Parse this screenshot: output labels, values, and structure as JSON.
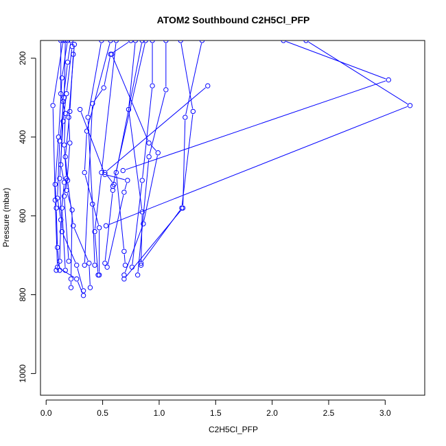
{
  "chart_data": {
    "type": "scatter",
    "title": "ATOM2 Southbound C2H5Cl_PFP",
    "xlabel": "C2H5Cl_PFP",
    "ylabel": "Pressure (mbar)",
    "xlim": [
      -0.05,
      3.35
    ],
    "ylim": [
      1055,
      155
    ],
    "y_reversed": true,
    "x_ticks": [
      "0.0",
      "0.5",
      "1.0",
      "1.5",
      "2.0",
      "2.5",
      "3.0"
    ],
    "x_tick_values": [
      0,
      0.5,
      1.0,
      1.5,
      2.0,
      2.5,
      3.0
    ],
    "y_ticks": [
      "200",
      "400",
      "600",
      "800",
      "1000"
    ],
    "y_tick_values": [
      200,
      400,
      600,
      800,
      1000
    ],
    "series_color": "#0000ff",
    "series": [
      {
        "points": [
          [
            0.19,
            155
          ],
          [
            0.14,
            250
          ],
          [
            0.11,
            400
          ],
          [
            0.08,
            520
          ],
          [
            0.09,
            580
          ],
          [
            0.1,
            680
          ],
          [
            0.12,
            738
          ]
        ]
      },
      {
        "points": [
          [
            0.17,
            155
          ],
          [
            0.16,
            300
          ],
          [
            0.12,
            410
          ],
          [
            0.1,
            555
          ],
          [
            0.13,
            610
          ],
          [
            0.12,
            715
          ],
          [
            0.09,
            738
          ]
        ]
      },
      {
        "points": [
          [
            0.22,
            155
          ],
          [
            0.19,
            210
          ],
          [
            0.15,
            310
          ],
          [
            0.13,
            470
          ],
          [
            0.16,
            515
          ],
          [
            0.14,
            580
          ],
          [
            0.17,
            738
          ]
        ]
      },
      {
        "points": [
          [
            0.13,
            155
          ],
          [
            0.13,
            290
          ],
          [
            0.17,
            340
          ],
          [
            0.16,
            420
          ],
          [
            0.18,
            505
          ],
          [
            0.16,
            550
          ],
          [
            0.2,
            715
          ]
        ]
      },
      {
        "points": [
          [
            0.25,
            165
          ],
          [
            0.2,
            350
          ],
          [
            0.21,
            415
          ],
          [
            0.18,
            535
          ],
          [
            0.23,
            585
          ],
          [
            0.22,
            760
          ],
          [
            0.22,
            782
          ]
        ]
      },
      {
        "points": [
          [
            0.23,
            170
          ],
          [
            0.18,
            290
          ],
          [
            0.15,
            360
          ],
          [
            0.12,
            505
          ],
          [
            0.14,
            640
          ],
          [
            0.27,
            725
          ],
          [
            0.33,
            790
          ]
        ]
      },
      {
        "points": [
          [
            0.24,
            190
          ],
          [
            0.21,
            335
          ],
          [
            0.17,
            450
          ],
          [
            0.19,
            510
          ],
          [
            0.24,
            625
          ],
          [
            0.38,
            720
          ],
          [
            0.39,
            782
          ]
        ]
      },
      {
        "points": [
          [
            0.15,
            155
          ],
          [
            0.06,
            320
          ],
          [
            0.08,
            560
          ],
          [
            0.1,
            730
          ],
          [
            0.27,
            760
          ],
          [
            0.33,
            802
          ]
        ]
      },
      {
        "points": [
          [
            0.57,
            155
          ],
          [
            0.36,
            385
          ],
          [
            0.34,
            490
          ],
          [
            0.47,
            630
          ],
          [
            0.47,
            750
          ]
        ]
      },
      {
        "points": [
          [
            0.75,
            155
          ],
          [
            0.57,
            190
          ],
          [
            0.51,
            275
          ],
          [
            0.41,
            315
          ],
          [
            0.34,
            725
          ]
        ]
      },
      {
        "points": [
          [
            0.62,
            155
          ],
          [
            0.49,
            490
          ],
          [
            0.43,
            640
          ],
          [
            0.46,
            750
          ]
        ]
      },
      {
        "points": [
          [
            0.49,
            155
          ],
          [
            0.37,
            350
          ],
          [
            0.41,
            570
          ],
          [
            0.43,
            725
          ]
        ]
      },
      {
        "points": [
          [
            0.79,
            155
          ],
          [
            0.73,
            330
          ],
          [
            0.85,
            590
          ],
          [
            0.84,
            725
          ]
        ]
      },
      {
        "points": [
          [
            0.85,
            155
          ],
          [
            0.62,
            490
          ],
          [
            0.69,
            690
          ],
          [
            0.7,
            725
          ]
        ]
      },
      {
        "points": [
          [
            0.94,
            155
          ],
          [
            0.94,
            270
          ],
          [
            0.85,
            510
          ],
          [
            0.76,
            730
          ]
        ]
      },
      {
        "points": [
          [
            1.06,
            155
          ],
          [
            1.06,
            280
          ],
          [
            0.91,
            450
          ],
          [
            0.81,
            750
          ]
        ]
      },
      {
        "points": [
          [
            1.19,
            155
          ],
          [
            1.3,
            335
          ],
          [
            1.2,
            580
          ],
          [
            0.84,
            720
          ]
        ]
      },
      {
        "points": [
          [
            1.38,
            155
          ],
          [
            1.23,
            350
          ],
          [
            1.21,
            580
          ],
          [
            0.69,
            760
          ]
        ]
      },
      {
        "points": [
          [
            0.88,
            155
          ],
          [
            0.59,
            525
          ],
          [
            0.59,
            535
          ],
          [
            0.52,
            720
          ]
        ]
      },
      {
        "points": [
          [
            0.58,
            190
          ],
          [
            0.91,
            415
          ],
          [
            0.99,
            440
          ],
          [
            0.86,
            620
          ],
          [
            0.69,
            750
          ]
        ]
      },
      {
        "points": [
          [
            0.3,
            330
          ],
          [
            0.52,
            495
          ],
          [
            0.72,
            510
          ],
          [
            0.69,
            540
          ],
          [
            0.54,
            730
          ]
        ]
      },
      {
        "points": [
          [
            2.1,
            155
          ],
          [
            3.03,
            255
          ],
          [
            0.68,
            485
          ]
        ]
      },
      {
        "points": [
          [
            2.3,
            155
          ],
          [
            3.22,
            320
          ],
          [
            0.53,
            625
          ]
        ]
      },
      {
        "points": [
          [
            1.43,
            270
          ],
          [
            0.52,
            490
          ],
          [
            0.6,
            520
          ]
        ]
      }
    ]
  }
}
